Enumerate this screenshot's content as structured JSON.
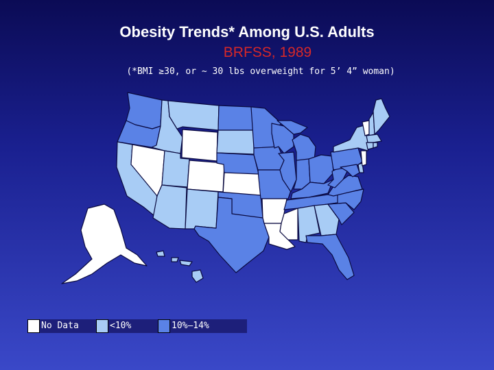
{
  "title": "Obesity Trends* Among U.S. Adults",
  "subtitle": "BRFSS, 1989",
  "note": "(*BMI ≥30, or ~ 30 lbs overweight for 5’ 4” woman)",
  "colors": {
    "no_data": "#ffffff",
    "lt10": "#a8ccf5",
    "10to14": "#5a82e6",
    "stroke": "#0a0a40"
  },
  "legend": [
    {
      "label": "No Data",
      "category": "no_data"
    },
    {
      "label": "<10%",
      "category": "lt10"
    },
    {
      "label": "10%–14%",
      "category": "10to14"
    }
  ],
  "states": {
    "WA": "10to14",
    "OR": "10to14",
    "CA": "lt10",
    "NV": "no_data",
    "ID": "lt10",
    "MT": "lt10",
    "WY": "no_data",
    "UT": "lt10",
    "AZ": "lt10",
    "CO": "no_data",
    "NM": "lt10",
    "ND": "10to14",
    "SD": "lt10",
    "NE": "10to14",
    "KS": "no_data",
    "OK": "10to14",
    "TX": "10to14",
    "MN": "10to14",
    "IA": "10to14",
    "MO": "10to14",
    "AR": "no_data",
    "LA": "no_data",
    "WI": "10to14",
    "IL": "10to14",
    "MS": "no_data",
    "MI": "10to14",
    "IN": "10to14",
    "KY": "10to14",
    "TN": "10to14",
    "AL": "lt10",
    "OH": "10to14",
    "GA": "lt10",
    "FL": "10to14",
    "SC": "10to14",
    "NC": "10to14",
    "VA": "10to14",
    "WV": "10to14",
    "PA": "10to14",
    "NY": "lt10",
    "VT": "no_data",
    "NH": "lt10",
    "ME": "lt10",
    "MA": "lt10",
    "CT": "lt10",
    "RI": "lt10",
    "NJ": "no_data",
    "DE": "lt10",
    "MD": "10to14",
    "AK": "no_data",
    "HI": "lt10"
  }
}
